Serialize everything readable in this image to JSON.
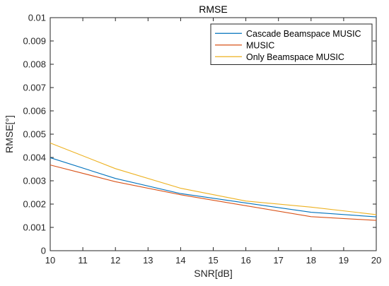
{
  "chart_data": {
    "type": "line",
    "title": "RMSE",
    "xlabel": "SNR[dB]",
    "ylabel": "RMSE[°]",
    "xlim": [
      10,
      20
    ],
    "ylim": [
      0,
      0.01
    ],
    "x_ticks": [
      "10",
      "11",
      "12",
      "13",
      "14",
      "15",
      "16",
      "17",
      "18",
      "19",
      "20"
    ],
    "y_ticks": [
      "0",
      "0.001",
      "0.002",
      "0.003",
      "0.004",
      "0.005",
      "0.006",
      "0.007",
      "0.008",
      "0.009",
      "0.01"
    ],
    "x": [
      10,
      12,
      14,
      16,
      18,
      20
    ],
    "series": [
      {
        "name": "Cascade Beamspace MUSIC",
        "color": "#0072BD",
        "values": [
          0.00399,
          0.0031,
          0.00245,
          0.00205,
          0.00165,
          0.00145
        ]
      },
      {
        "name": "MUSIC",
        "color": "#D95319",
        "values": [
          0.00368,
          0.00296,
          0.0024,
          0.00193,
          0.00146,
          0.0013
        ]
      },
      {
        "name": "Only Beamspace MUSIC",
        "color": "#EDB120",
        "values": [
          0.00462,
          0.00352,
          0.00268,
          0.00213,
          0.00187,
          0.00155
        ]
      }
    ],
    "grid": false,
    "legend": "top-right"
  }
}
